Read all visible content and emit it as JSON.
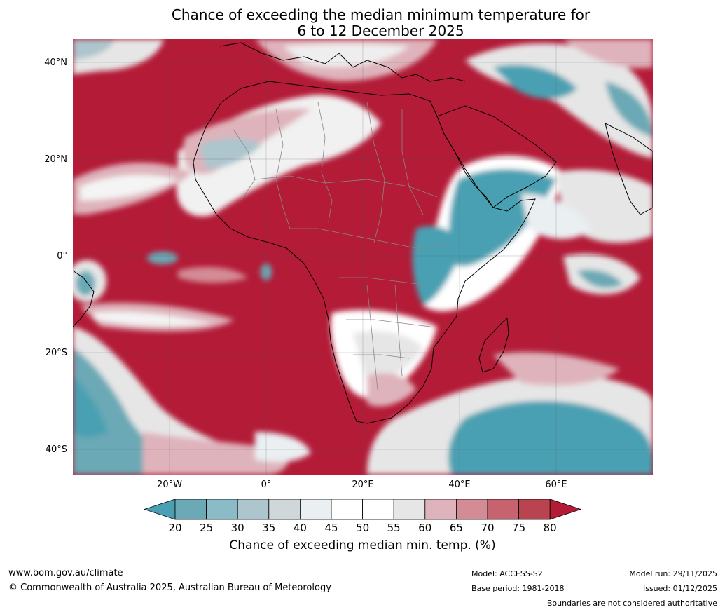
{
  "title": {
    "line1": "Chance of exceeding the median minimum temperature for",
    "line2": "6 to 12 December 2025"
  },
  "map": {
    "lat_labels": [
      "40°N",
      "20°N",
      "0°",
      "20°S",
      "40°S"
    ],
    "lon_labels": [
      "20°W",
      "0°",
      "20°E",
      "40°E",
      "60°E"
    ],
    "region": "Africa and surrounding oceans"
  },
  "colorbar": {
    "ticks": [
      "20",
      "25",
      "30",
      "35",
      "40",
      "45",
      "50",
      "55",
      "60",
      "65",
      "70",
      "75",
      "80"
    ],
    "colors": [
      "#4aa0b2",
      "#6aa9b5",
      "#8bbbc6",
      "#adc5cc",
      "#d0d7da",
      "#eaeff2",
      "#ffffff",
      "#ffffff",
      "#e6e6e6",
      "#dfb3bb",
      "#d38b95",
      "#c6636f",
      "#b9434f",
      "#b31b37"
    ],
    "label": "Chance of exceeding median min. temp. (%)"
  },
  "footer": {
    "website": "www.bom.gov.au/climate",
    "copyright": "© Commonwealth of Australia 2025, Australian Bureau of Meteorology",
    "model": "Model: ACCESS-S2",
    "base_period": "Base period: 1981-2018",
    "model_run": "Model run: 29/11/2025",
    "issued": "Issued: 01/12/2025",
    "disclaimer": "Boundaries are not considered authoritative"
  }
}
